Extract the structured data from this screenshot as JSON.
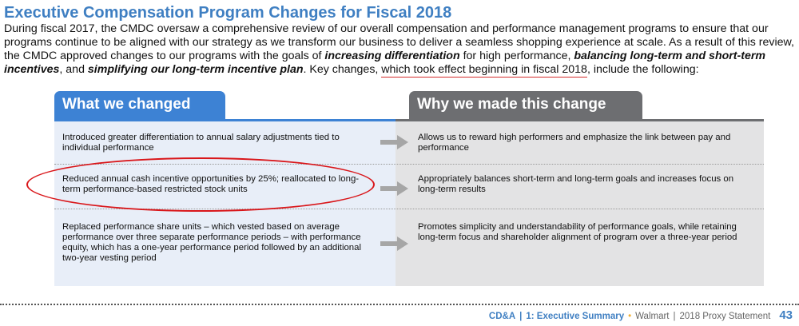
{
  "title": "Executive Compensation Program Changes for Fiscal 2018",
  "intro": {
    "p1": "During fiscal 2017, the CMDC oversaw a comprehensive review of our overall compensation and performance management programs to ensure that our programs continue to be aligned with our strategy as we transform our business to deliver a seamless shopping experience at scale. As a result of this review, the CMDC approved changes to our programs with the goals of ",
    "em1": "increasing differentiation",
    "p2": " for high performance, ",
    "em2": "balancing long-term and short-term incentives",
    "p3": ", and ",
    "em3": "simplifying our long-term incentive plan",
    "p4": ". Key changes, ",
    "underlined": "which took effect beginning in fiscal 2018",
    "p5": ", include the following:"
  },
  "table": {
    "left_header": "What we changed",
    "right_header": "Why we made this change",
    "rows": [
      {
        "what": "Introduced greater differentiation to annual salary adjustments tied to individual performance",
        "why": "Allows us to reward high performers and emphasize the link between pay and performance"
      },
      {
        "what": "Reduced annual cash incentive opportunities by 25%; reallocated to long-term performance-based restricted stock units",
        "why": "Appropriately balances short-term and long-term goals and increases focus on long-term results"
      },
      {
        "what": "Replaced performance share units – which vested based on average performance over three separate performance periods – with performance equity, which has a one-year performance period followed by an additional two-year vesting period",
        "why": "Promotes simplicity and understandability of performance goals, while retaining long-term focus and shareholder alignment of program over a three-year period"
      }
    ]
  },
  "footer": {
    "section": "CD&A",
    "sep1": "|",
    "chapter": "1: Executive Summary",
    "bullet": "•",
    "company": "Walmart",
    "sep2": "|",
    "document": "2018 Proxy Statement",
    "page": "43"
  },
  "colors": {
    "title_blue": "#3f7fc2",
    "left_header_blue": "#3d82d4",
    "right_header_gray": "#6d6e71",
    "highlight_red": "#d9161a"
  },
  "icons": {
    "row_arrow": "right-arrow-icon"
  }
}
